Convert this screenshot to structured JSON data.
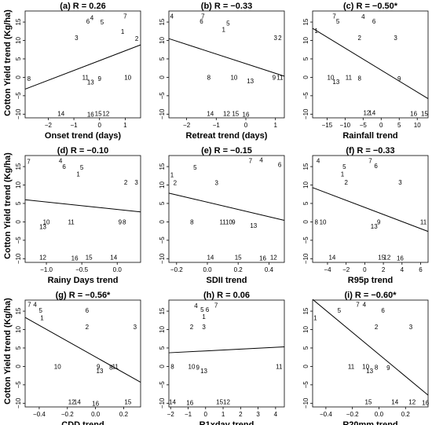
{
  "ylabel": "Cotton Yield trend (Kg/ha)",
  "chart_data": [
    {
      "type": "scatter",
      "title": "(a) R = 0.26",
      "xlabel": "Onset trend (days)",
      "xlim": [
        -2.9,
        1.6
      ],
      "ylim": [
        -11,
        18
      ],
      "xticks": [
        -2,
        -1,
        0,
        1
      ],
      "xtick_labels": [
        "−2",
        "−1",
        "0",
        "1"
      ],
      "yticks": [
        -10,
        -5,
        0,
        5,
        10,
        15
      ],
      "ytick_labels": [
        "−10",
        "−5",
        "0",
        "5",
        "10",
        "15"
      ],
      "trend_line": [
        [
          -2.9,
          -3.2
        ],
        [
          1.6,
          8.8
        ]
      ],
      "points": [
        {
          "label": "1",
          "x": 0.9,
          "y": 12.5
        },
        {
          "label": "2",
          "x": 1.45,
          "y": 10.5
        },
        {
          "label": "3",
          "x": -0.9,
          "y": 10.8
        },
        {
          "label": "4",
          "x": -0.3,
          "y": 16.2
        },
        {
          "label": "5",
          "x": 0.1,
          "y": 15.0
        },
        {
          "label": "6",
          "x": -0.45,
          "y": 15.2
        },
        {
          "label": "7",
          "x": 1.0,
          "y": 16.6
        },
        {
          "label": "8",
          "x": -2.75,
          "y": -0.3
        },
        {
          "label": "9",
          "x": 0.0,
          "y": -0.3
        },
        {
          "label": "10",
          "x": 1.1,
          "y": 0.0
        },
        {
          "label": "11",
          "x": -0.55,
          "y": 0.0
        },
        {
          "label": "12",
          "x": 0.25,
          "y": -9.8
        },
        {
          "label": "13",
          "x": -0.35,
          "y": -1.3
        },
        {
          "label": "14",
          "x": -1.5,
          "y": -9.8
        },
        {
          "label": "15",
          "x": -0.05,
          "y": -9.8
        },
        {
          "label": "16",
          "x": -0.35,
          "y": -10.0
        }
      ]
    },
    {
      "type": "scatter",
      "title": "(b) R = −0.33",
      "xlabel": "Retreat trend (days)",
      "xlim": [
        -2.6,
        1.3
      ],
      "ylim": [
        -11,
        18
      ],
      "xticks": [
        -2,
        -1,
        0,
        1
      ],
      "xtick_labels": [
        "−2",
        "−1",
        "0",
        "1"
      ],
      "yticks": [
        -10,
        -5,
        0,
        5,
        10,
        15
      ],
      "ytick_labels": [
        "−10",
        "−5",
        "0",
        "5",
        "10",
        "15"
      ],
      "trend_line": [
        [
          -2.6,
          10.5
        ],
        [
          1.3,
          0.3
        ]
      ],
      "points": [
        {
          "label": "1",
          "x": -0.75,
          "y": 13.0
        },
        {
          "label": "2",
          "x": 1.15,
          "y": 10.8
        },
        {
          "label": "3",
          "x": 1.0,
          "y": 10.8
        },
        {
          "label": "4",
          "x": -2.5,
          "y": 16.6
        },
        {
          "label": "5",
          "x": -0.6,
          "y": 14.7
        },
        {
          "label": "6",
          "x": -1.5,
          "y": 15.2
        },
        {
          "label": "7",
          "x": -1.45,
          "y": 16.6
        },
        {
          "label": "8",
          "x": -1.25,
          "y": 0.0
        },
        {
          "label": "9",
          "x": 0.95,
          "y": 0.0
        },
        {
          "label": "10",
          "x": -0.4,
          "y": 0.0
        },
        {
          "label": "11",
          "x": 1.15,
          "y": 0.0
        },
        {
          "label": "12",
          "x": -0.65,
          "y": -9.8
        },
        {
          "label": "13",
          "x": 0.15,
          "y": -1.0
        },
        {
          "label": "14",
          "x": -1.2,
          "y": -9.8
        },
        {
          "label": "15",
          "x": -0.35,
          "y": -9.8
        },
        {
          "label": "16",
          "x": 0.0,
          "y": -10.0
        }
      ]
    },
    {
      "type": "scatter",
      "title": "(c) R = −0.50*",
      "xlabel": "Rainfall trend",
      "xlim": [
        -19,
        13
      ],
      "ylim": [
        -11,
        18
      ],
      "xticks": [
        -15,
        -10,
        -5,
        0,
        5,
        10
      ],
      "xtick_labels": [
        "−15",
        "−10",
        "−5",
        "0",
        "5",
        "10"
      ],
      "yticks": [
        -10,
        -5,
        0,
        5,
        10,
        15
      ],
      "ytick_labels": [
        "−10",
        "−5",
        "0",
        "5",
        "10",
        "15"
      ],
      "trend_line": [
        [
          -19,
          13.3
        ],
        [
          13,
          -5.8
        ]
      ],
      "points": [
        {
          "label": "1",
          "x": -18,
          "y": 12.7
        },
        {
          "label": "2",
          "x": -6,
          "y": 10.8
        },
        {
          "label": "3",
          "x": 4,
          "y": 10.8
        },
        {
          "label": "4",
          "x": -5,
          "y": 16.5
        },
        {
          "label": "5",
          "x": -12,
          "y": 15.2
        },
        {
          "label": "6",
          "x": -2,
          "y": 15.2
        },
        {
          "label": "7",
          "x": -13,
          "y": 16.6
        },
        {
          "label": "8",
          "x": -6,
          "y": -0.2
        },
        {
          "label": "9",
          "x": 5,
          "y": -0.3
        },
        {
          "label": "10",
          "x": -14,
          "y": 0.0
        },
        {
          "label": "11",
          "x": -9,
          "y": 0.0
        },
        {
          "label": "12",
          "x": -4,
          "y": -9.6
        },
        {
          "label": "13",
          "x": -12.5,
          "y": -1.2
        },
        {
          "label": "14",
          "x": -2.5,
          "y": -9.6
        },
        {
          "label": "15",
          "x": 12,
          "y": -9.8
        },
        {
          "label": "16",
          "x": 9,
          "y": -9.8
        }
      ]
    },
    {
      "type": "scatter",
      "title": "(d) R = −0.10",
      "xlabel": "Rainy Days trend",
      "xlim": [
        -1.3,
        0.33
      ],
      "ylim": [
        -11,
        18
      ],
      "xticks": [
        -1.0,
        -0.5,
        0.0
      ],
      "xtick_labels": [
        "−1.0",
        "−0.5",
        "0.0"
      ],
      "yticks": [
        -10,
        -5,
        0,
        5,
        10,
        15
      ],
      "ytick_labels": [
        "−10",
        "−5",
        "0",
        "5",
        "10",
        "15"
      ],
      "trend_line": [
        [
          -1.3,
          6.0
        ],
        [
          0.33,
          2.7
        ]
      ],
      "points": [
        {
          "label": "1",
          "x": -0.55,
          "y": 13.0
        },
        {
          "label": "2",
          "x": 0.12,
          "y": 10.8
        },
        {
          "label": "3",
          "x": 0.27,
          "y": 10.8
        },
        {
          "label": "4",
          "x": -0.8,
          "y": 16.6
        },
        {
          "label": "5",
          "x": -0.5,
          "y": 14.8
        },
        {
          "label": "6",
          "x": -0.75,
          "y": 15.0
        },
        {
          "label": "7",
          "x": -1.25,
          "y": 16.4
        },
        {
          "label": "8",
          "x": 0.1,
          "y": 0.0
        },
        {
          "label": "9",
          "x": 0.04,
          "y": 0.0
        },
        {
          "label": "10",
          "x": -1.0,
          "y": 0.0
        },
        {
          "label": "11",
          "x": -0.65,
          "y": 0.0
        },
        {
          "label": "12",
          "x": -1.05,
          "y": -9.6
        },
        {
          "label": "13",
          "x": -1.05,
          "y": -1.3
        },
        {
          "label": "14",
          "x": -0.05,
          "y": -9.6
        },
        {
          "label": "15",
          "x": -0.4,
          "y": -9.6
        },
        {
          "label": "16",
          "x": -0.6,
          "y": -9.8
        }
      ]
    },
    {
      "type": "scatter",
      "title": "(e) R = −0.15",
      "xlabel": "SDII trend",
      "xlim": [
        -0.25,
        0.5
      ],
      "ylim": [
        -11,
        18
      ],
      "xticks": [
        -0.2,
        0.0,
        0.2,
        0.4
      ],
      "xtick_labels": [
        "−0.2",
        "0.0",
        "0.2",
        "0.4"
      ],
      "yticks": [
        -10,
        -5,
        0,
        5,
        10,
        15
      ],
      "ytick_labels": [
        "−10",
        "−5",
        "0",
        "5",
        "10",
        "15"
      ],
      "trend_line": [
        [
          -0.25,
          7.8
        ],
        [
          0.5,
          0.4
        ]
      ],
      "points": [
        {
          "label": "1",
          "x": -0.23,
          "y": 12.8
        },
        {
          "label": "2",
          "x": -0.21,
          "y": 10.6
        },
        {
          "label": "3",
          "x": 0.06,
          "y": 10.6
        },
        {
          "label": "4",
          "x": 0.35,
          "y": 16.8
        },
        {
          "label": "5",
          "x": -0.08,
          "y": 14.8
        },
        {
          "label": "6",
          "x": 0.47,
          "y": 15.6
        },
        {
          "label": "7",
          "x": 0.28,
          "y": 16.6
        },
        {
          "label": "8",
          "x": -0.1,
          "y": 0.0
        },
        {
          "label": "9",
          "x": 0.17,
          "y": 0.0
        },
        {
          "label": "10",
          "x": 0.14,
          "y": 0.0
        },
        {
          "label": "11",
          "x": 0.1,
          "y": 0.0
        },
        {
          "label": "12",
          "x": 0.43,
          "y": -9.6
        },
        {
          "label": "13",
          "x": 0.3,
          "y": -1.0
        },
        {
          "label": "14",
          "x": 0.02,
          "y": -9.6
        },
        {
          "label": "15",
          "x": 0.2,
          "y": -9.6
        },
        {
          "label": "16",
          "x": 0.36,
          "y": -9.8
        }
      ]
    },
    {
      "type": "scatter",
      "title": "(f) R = −0.33",
      "xlabel": "R95p trend",
      "xlim": [
        -5.6,
        6.8
      ],
      "ylim": [
        -11,
        18
      ],
      "xticks": [
        -4,
        -2,
        0,
        2,
        4,
        6
      ],
      "xtick_labels": [
        "−4",
        "−2",
        "0",
        "2",
        "4",
        "6"
      ],
      "yticks": [
        -10,
        -5,
        0,
        5,
        10,
        15
      ],
      "ytick_labels": [
        "−10",
        "−5",
        "0",
        "5",
        "10",
        "15"
      ],
      "trend_line": [
        [
          -5.6,
          9.3
        ],
        [
          6.8,
          -2.6
        ]
      ],
      "points": [
        {
          "label": "1",
          "x": -2.4,
          "y": 13.0
        },
        {
          "label": "2",
          "x": -2.0,
          "y": 10.8
        },
        {
          "label": "3",
          "x": 3.8,
          "y": 10.8
        },
        {
          "label": "4",
          "x": -5.0,
          "y": 16.6
        },
        {
          "label": "5",
          "x": -2.2,
          "y": 15.0
        },
        {
          "label": "6",
          "x": 1.2,
          "y": 15.2
        },
        {
          "label": "7",
          "x": 0.6,
          "y": 16.6
        },
        {
          "label": "8",
          "x": -5.2,
          "y": 0.0
        },
        {
          "label": "9",
          "x": 1.5,
          "y": 0.0
        },
        {
          "label": "10",
          "x": -4.5,
          "y": 0.0
        },
        {
          "label": "11",
          "x": 6.3,
          "y": 0.0
        },
        {
          "label": "12",
          "x": 2.4,
          "y": -9.6
        },
        {
          "label": "13",
          "x": 1.0,
          "y": -1.2
        },
        {
          "label": "14",
          "x": -3.5,
          "y": -9.6
        },
        {
          "label": "15",
          "x": 1.8,
          "y": -9.6
        },
        {
          "label": "16",
          "x": 3.8,
          "y": -9.8
        }
      ]
    },
    {
      "type": "scatter",
      "title": "(g) R = −0.56*",
      "xlabel": "CDD trend",
      "xlim": [
        -0.5,
        0.32
      ],
      "ylim": [
        -11,
        18
      ],
      "xticks": [
        -0.4,
        -0.2,
        0.0,
        0.2
      ],
      "xtick_labels": [
        "−0.4",
        "−0.2",
        "0.0",
        "0.2"
      ],
      "yticks": [
        -10,
        -5,
        0,
        5,
        10,
        15
      ],
      "ytick_labels": [
        "−10",
        "−5",
        "0",
        "5",
        "10",
        "15"
      ],
      "trend_line": [
        [
          -0.5,
          13.3
        ],
        [
          0.32,
          -4.3
        ]
      ],
      "points": [
        {
          "label": "1",
          "x": -0.38,
          "y": 13.2
        },
        {
          "label": "2",
          "x": -0.06,
          "y": 10.8
        },
        {
          "label": "3",
          "x": 0.28,
          "y": 10.8
        },
        {
          "label": "4",
          "x": -0.43,
          "y": 16.8
        },
        {
          "label": "5",
          "x": -0.39,
          "y": 15.2
        },
        {
          "label": "6",
          "x": -0.06,
          "y": 15.2
        },
        {
          "label": "7",
          "x": -0.47,
          "y": 16.8
        },
        {
          "label": "8",
          "x": 0.11,
          "y": -0.2
        },
        {
          "label": "9",
          "x": 0.02,
          "y": 0.0
        },
        {
          "label": "10",
          "x": -0.27,
          "y": 0.0
        },
        {
          "label": "11",
          "x": 0.14,
          "y": 0.0
        },
        {
          "label": "12",
          "x": -0.17,
          "y": -9.6
        },
        {
          "label": "13",
          "x": 0.03,
          "y": -1.2
        },
        {
          "label": "14",
          "x": -0.13,
          "y": -9.6
        },
        {
          "label": "15",
          "x": 0.23,
          "y": -9.6
        },
        {
          "label": "16",
          "x": 0.0,
          "y": -10.0
        }
      ]
    },
    {
      "type": "scatter",
      "title": "(h) R = 0.06",
      "xlabel": "R1xday trend",
      "xlim": [
        -2.1,
        4.5
      ],
      "ylim": [
        -11,
        18
      ],
      "xticks": [
        -2,
        -1,
        0,
        1,
        2,
        3,
        4
      ],
      "xtick_labels": [
        "−2",
        "−1",
        "0",
        "1",
        "2",
        "3",
        "4"
      ],
      "yticks": [
        -10,
        -5,
        0,
        5,
        10,
        15
      ],
      "ytick_labels": [
        "−10",
        "−5",
        "0",
        "5",
        "10",
        "15"
      ],
      "trend_line": [
        [
          -2.1,
          3.7
        ],
        [
          4.5,
          5.3
        ]
      ],
      "points": [
        {
          "label": "1",
          "x": -0.1,
          "y": 13.5
        },
        {
          "label": "2",
          "x": -0.8,
          "y": 10.8
        },
        {
          "label": "3",
          "x": -0.1,
          "y": 10.8
        },
        {
          "label": "4",
          "x": -0.55,
          "y": 16.5
        },
        {
          "label": "5",
          "x": -0.2,
          "y": 15.4
        },
        {
          "label": "6",
          "x": 0.1,
          "y": 15.4
        },
        {
          "label": "7",
          "x": 0.6,
          "y": 16.6
        },
        {
          "label": "8",
          "x": -1.9,
          "y": 0.0
        },
        {
          "label": "9",
          "x": -0.45,
          "y": -0.2
        },
        {
          "label": "10",
          "x": -0.8,
          "y": 0.0
        },
        {
          "label": "11",
          "x": 4.2,
          "y": 0.0
        },
        {
          "label": "12",
          "x": 1.2,
          "y": -9.6
        },
        {
          "label": "13",
          "x": -0.1,
          "y": -1.2
        },
        {
          "label": "14",
          "x": -1.9,
          "y": -9.6
        },
        {
          "label": "15",
          "x": 0.8,
          "y": -9.6
        },
        {
          "label": "16",
          "x": -0.9,
          "y": -9.8
        }
      ]
    },
    {
      "type": "scatter",
      "title": "(i) R = −0.60*",
      "xlabel": "R20mm trend",
      "xlim": [
        -0.5,
        0.37
      ],
      "ylim": [
        -11,
        18
      ],
      "xticks": [
        -0.4,
        -0.2,
        0.0,
        0.2
      ],
      "xtick_labels": [
        "−0.4",
        "−0.2",
        "0.0",
        "0.2"
      ],
      "yticks": [
        -10,
        -5,
        0,
        5,
        10,
        15
      ],
      "ytick_labels": [
        "−10",
        "−5",
        "0",
        "5",
        "10",
        "15"
      ],
      "trend_line": [
        [
          -0.5,
          18.2
        ],
        [
          0.37,
          -7.8
        ]
      ],
      "points": [
        {
          "label": "1",
          "x": -0.48,
          "y": 13.2
        },
        {
          "label": "2",
          "x": -0.02,
          "y": 10.8
        },
        {
          "label": "3",
          "x": 0.24,
          "y": 10.8
        },
        {
          "label": "4",
          "x": -0.11,
          "y": 16.8
        },
        {
          "label": "5",
          "x": -0.3,
          "y": 15.2
        },
        {
          "label": "6",
          "x": 0.03,
          "y": 15.2
        },
        {
          "label": "7",
          "x": -0.16,
          "y": 16.8
        },
        {
          "label": "8",
          "x": -0.02,
          "y": -0.2
        },
        {
          "label": "9",
          "x": 0.07,
          "y": -0.3
        },
        {
          "label": "10",
          "x": -0.1,
          "y": 0.0
        },
        {
          "label": "11",
          "x": -0.21,
          "y": 0.0
        },
        {
          "label": "12",
          "x": 0.25,
          "y": -9.6
        },
        {
          "label": "13",
          "x": -0.07,
          "y": -1.2
        },
        {
          "label": "14",
          "x": 0.12,
          "y": -9.6
        },
        {
          "label": "15",
          "x": -0.08,
          "y": -9.6
        },
        {
          "label": "16",
          "x": 0.35,
          "y": -9.8
        }
      ]
    }
  ]
}
